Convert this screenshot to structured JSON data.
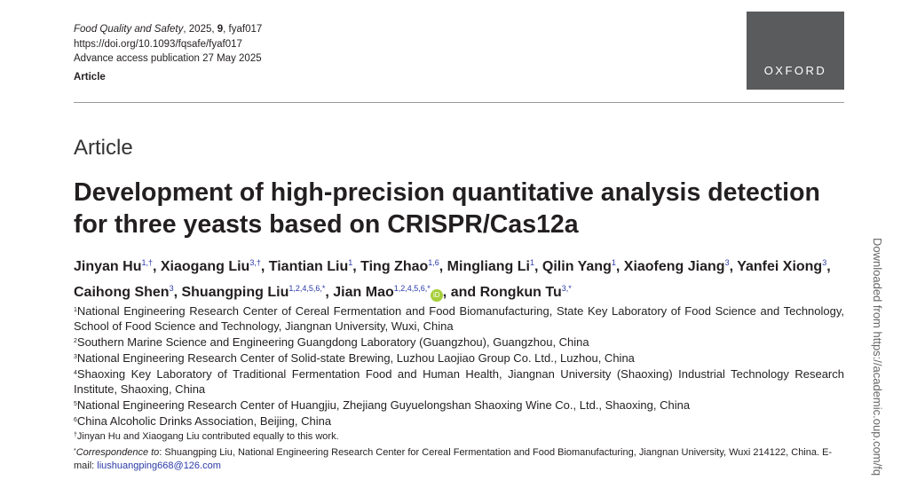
{
  "header": {
    "journal": "Food Quality and Safety",
    "year_prefix": ", 2025, ",
    "volume": "9",
    "article_id": ", fyaf017",
    "doi": "https://doi.org/10.1093/fqsafe/fyaf017",
    "publication": "Advance access publication 27 May 2025",
    "type": "Article"
  },
  "logo": "OXFORD",
  "article_type": "Article",
  "title": "Development of high-precision quantitative analysis detection for three yeasts based on CRISPR/Cas12a",
  "authors": [
    {
      "name": "Jinyan Hu",
      "sup": "1,†"
    },
    {
      "name": "Xiaogang Liu",
      "sup": "3,†"
    },
    {
      "name": "Tiantian Liu",
      "sup": "1"
    },
    {
      "name": "Ting Zhao",
      "sup": "1,6"
    },
    {
      "name": "Mingliang Li",
      "sup": "1"
    },
    {
      "name": "Qilin Yang",
      "sup": "1"
    },
    {
      "name": "Xiaofeng Jiang",
      "sup": "3"
    },
    {
      "name": "Yanfei Xiong",
      "sup": "3"
    },
    {
      "name": "Caihong Shen",
      "sup": "3"
    },
    {
      "name": "Shuangping Liu",
      "sup": "1,2,4,5,6,*"
    },
    {
      "name": "Jian Mao",
      "sup": "1,2,4,5,6,*"
    },
    {
      "name": "Rongkun Tu",
      "sup": "3,*"
    }
  ],
  "orcid_label": "iD",
  "and_label": "and",
  "affiliations": [
    {
      "n": "1",
      "text": "National Engineering Research Center of Cereal Fermentation and Food Biomanufacturing, State Key Laboratory of Food Science and Technology, School of Food Science and Technology, Jiangnan University, Wuxi, China"
    },
    {
      "n": "2",
      "text": "Southern Marine Science and Engineering Guangdong Laboratory (Guangzhou), Guangzhou, China"
    },
    {
      "n": "3",
      "text": "National Engineering Research Center of Solid-state Brewing, Luzhou Laojiao Group Co. Ltd., Luzhou, China"
    },
    {
      "n": "4",
      "text": "Shaoxing Key Laboratory of Traditional Fermentation Food and Human Health, Jiangnan University (Shaoxing) Industrial Technology Research Institute, Shaoxing, China"
    },
    {
      "n": "5",
      "text": "National Engineering Research Center of Huangjiu, Zhejiang Guyuelongshan Shaoxing Wine Co., Ltd., Shaoxing, China"
    },
    {
      "n": "6",
      "text": "China Alcoholic Drinks Association, Beijing, China"
    }
  ],
  "notes": {
    "equal_mark": "†",
    "equal": "Jinyan Hu and Xiaogang Liu contributed equally to this work.",
    "corr_mark": "*",
    "corr_label": "Correspondence to",
    "corr_text": ": Shuangping Liu, National Engineering Research Center for Cereal Fermentation and Food Biomanufacturing, Jiangnan University, Wuxi 214122, China. E-mail: ",
    "email": "liushuangping668@126.com"
  },
  "side_text": "Downloaded from https://academic.oup.com/fq"
}
